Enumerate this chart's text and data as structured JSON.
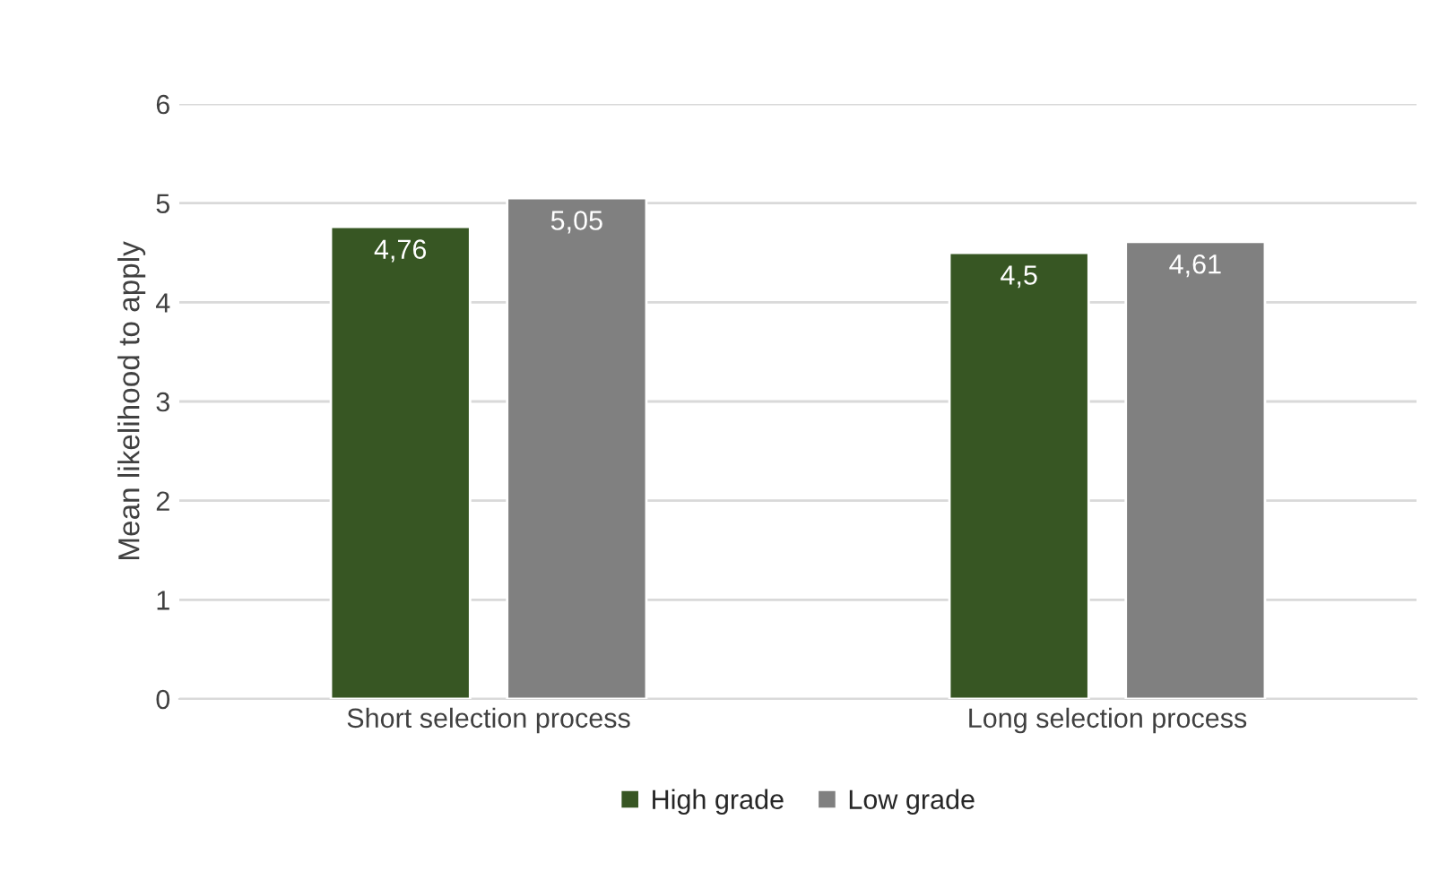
{
  "chart_data": {
    "type": "bar",
    "ylabel": "Mean likelihood to apply",
    "categories": [
      "Short selection process",
      "Long selection process"
    ],
    "series": [
      {
        "name": "High grade",
        "color": "#375623",
        "values": [
          4.76,
          4.5
        ],
        "value_labels": [
          "4,76",
          "4,5"
        ]
      },
      {
        "name": "Low grade",
        "color": "#808080",
        "values": [
          5.05,
          4.61
        ],
        "value_labels": [
          "5,05",
          "4,61"
        ]
      }
    ],
    "ylim": [
      0,
      6
    ],
    "yticks": [
      0,
      1,
      2,
      3,
      4,
      5,
      6
    ],
    "grid": "y",
    "legend": "bottom"
  }
}
